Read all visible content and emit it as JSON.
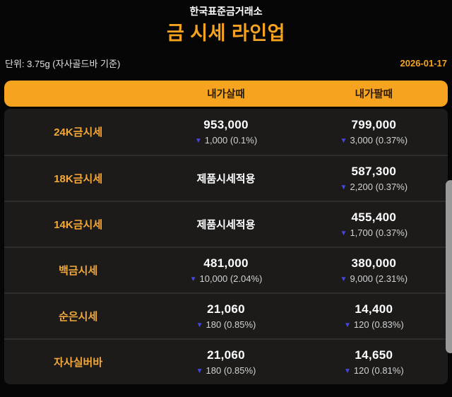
{
  "header": {
    "exchange_name": "한국표준금거래소",
    "title": "금 시세 라인업",
    "unit_label": "단위: 3.75g (자사골드바 기준)",
    "date": "2026-01-17"
  },
  "icons": {
    "down_triangle": "▼"
  },
  "colors": {
    "accent_orange": "#F6A41F",
    "row_background": "#1c1b1a",
    "page_background": "#060606",
    "down_triangle_blue": "#4747DF",
    "price_white": "#ffffff",
    "change_gray": "#d2d2d2"
  },
  "table": {
    "columns": {
      "buy": "내가살때",
      "sell": "내가팔때"
    },
    "rows": [
      {
        "label": "24K금시세",
        "buy": {
          "price": "953,000",
          "change": "1,000 (0.1%)",
          "direction": "down"
        },
        "sell": {
          "price": "799,000",
          "change": "3,000 (0.37%)",
          "direction": "down"
        }
      },
      {
        "label": "18K금시세",
        "buy": {
          "text": "제품시세적용"
        },
        "sell": {
          "price": "587,300",
          "change": "2,200 (0.37%)",
          "direction": "down"
        }
      },
      {
        "label": "14K금시세",
        "buy": {
          "text": "제품시세적용"
        },
        "sell": {
          "price": "455,400",
          "change": "1,700 (0.37%)",
          "direction": "down"
        }
      },
      {
        "label": "백금시세",
        "buy": {
          "price": "481,000",
          "change": "10,000 (2.04%)",
          "direction": "down"
        },
        "sell": {
          "price": "380,000",
          "change": "9,000 (2.31%)",
          "direction": "down"
        }
      },
      {
        "label": "순은시세",
        "buy": {
          "price": "21,060",
          "change": "180 (0.85%)",
          "direction": "down"
        },
        "sell": {
          "price": "14,400",
          "change": "120 (0.83%)",
          "direction": "down"
        }
      },
      {
        "label": "자사실버바",
        "buy": {
          "price": "21,060",
          "change": "180 (0.85%)",
          "direction": "down"
        },
        "sell": {
          "price": "14,650",
          "change": "120 (0.81%)",
          "direction": "down"
        }
      }
    ]
  }
}
